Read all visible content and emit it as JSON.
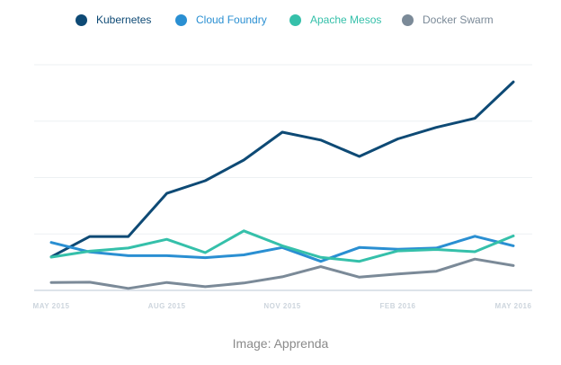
{
  "caption": "Image: Apprenda",
  "chart_data": {
    "type": "line",
    "x": [
      "2015-05",
      "2015-06",
      "2015-07",
      "2015-08",
      "2015-09",
      "2015-10",
      "2015-11",
      "2015-12",
      "2016-01",
      "2016-02",
      "2016-03",
      "2016-04",
      "2016-05"
    ],
    "x_tick_labels": [
      "MAY 2015",
      "AUG 2015",
      "NOV 2015",
      "FEB 2016",
      "MAY 2016"
    ],
    "x_tick_positions": [
      "2015-05",
      "2015-08",
      "2015-11",
      "2016-02",
      "2016-05"
    ],
    "xlabel": "",
    "ylabel": "",
    "grid": true,
    "legend": "top",
    "series": [
      {
        "name": "Kubernetes",
        "color": "#0e4a75",
        "values": [
          11.9,
          19.1,
          19.1,
          34.4,
          38.9,
          46.2,
          56.1,
          53.3,
          47.5,
          53.7,
          57.8,
          61.0,
          73.9
        ]
      },
      {
        "name": "Cloud Foundry",
        "color": "#2a8fd2",
        "values": [
          17.0,
          13.6,
          12.3,
          12.3,
          11.6,
          12.6,
          15.2,
          10.3,
          15.2,
          14.6,
          15.0,
          19.2,
          15.8
        ]
      },
      {
        "name": "Apache Mesos",
        "color": "#35c0aa",
        "values": [
          11.8,
          13.9,
          15.0,
          18.1,
          13.4,
          21.1,
          15.8,
          11.7,
          10.3,
          14.0,
          14.5,
          13.7,
          19.3
        ]
      },
      {
        "name": "Docker Swarm",
        "color": "#7b8a98",
        "values": [
          2.8,
          2.9,
          0.7,
          2.8,
          1.3,
          2.6,
          4.8,
          8.4,
          4.7,
          5.8,
          6.8,
          11.1,
          8.8
        ]
      }
    ]
  }
}
